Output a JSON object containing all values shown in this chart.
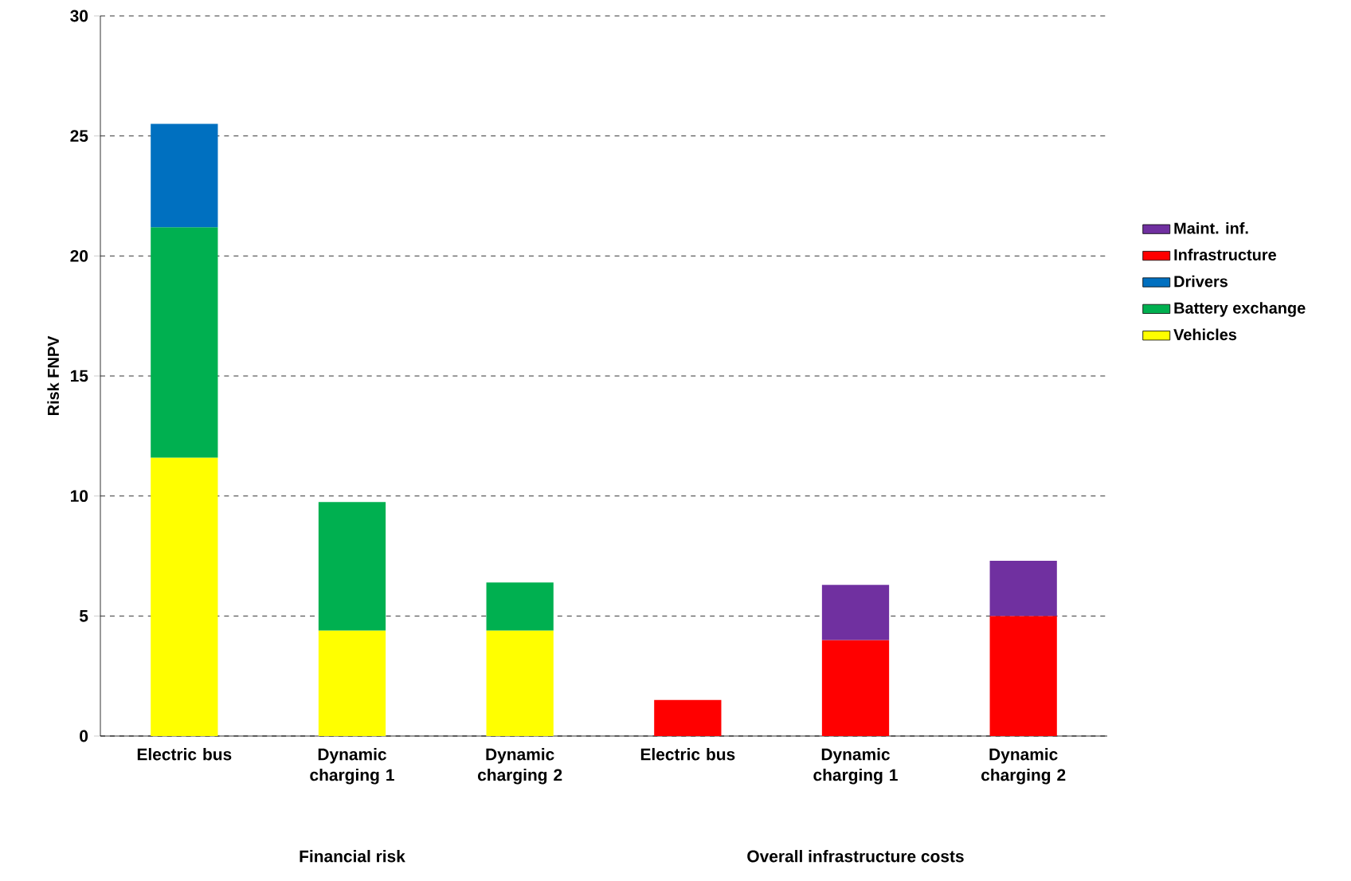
{
  "chart_data": {
    "type": "bar",
    "stacked": true,
    "ylabel": "Risk FNPV",
    "categories": [
      "Electric bus",
      "Dynamic charging 1",
      "Dynamic charging 2",
      "Electric bus",
      "Dynamic charging 1",
      "Dynamic charging 2"
    ],
    "series": [
      {
        "name": "Vehicles",
        "color": "#ffff00",
        "values": [
          11.6,
          4.4,
          4.4,
          null,
          null,
          null
        ]
      },
      {
        "name": "Battery exchange",
        "color": "#00b050",
        "values": [
          9.6,
          5.35,
          2.0,
          null,
          null,
          null
        ]
      },
      {
        "name": "Drivers",
        "color": "#0070c0",
        "values": [
          4.3,
          null,
          null,
          null,
          null,
          null
        ]
      },
      {
        "name": "Infrastructure",
        "color": "#ff0000",
        "values": [
          null,
          null,
          null,
          1.5,
          4.0,
          5.0
        ]
      },
      {
        "name": "Maint. inf.",
        "color": "#7030a0",
        "values": [
          null,
          null,
          null,
          null,
          2.3,
          2.3
        ]
      }
    ],
    "ylim": [
      0,
      30
    ],
    "yticks": [
      0,
      5,
      10,
      15,
      20,
      25,
      30
    ],
    "grid": "y",
    "legend": "right",
    "annotations": [
      "Financial risk",
      "Overall infrastructure costs"
    ]
  }
}
